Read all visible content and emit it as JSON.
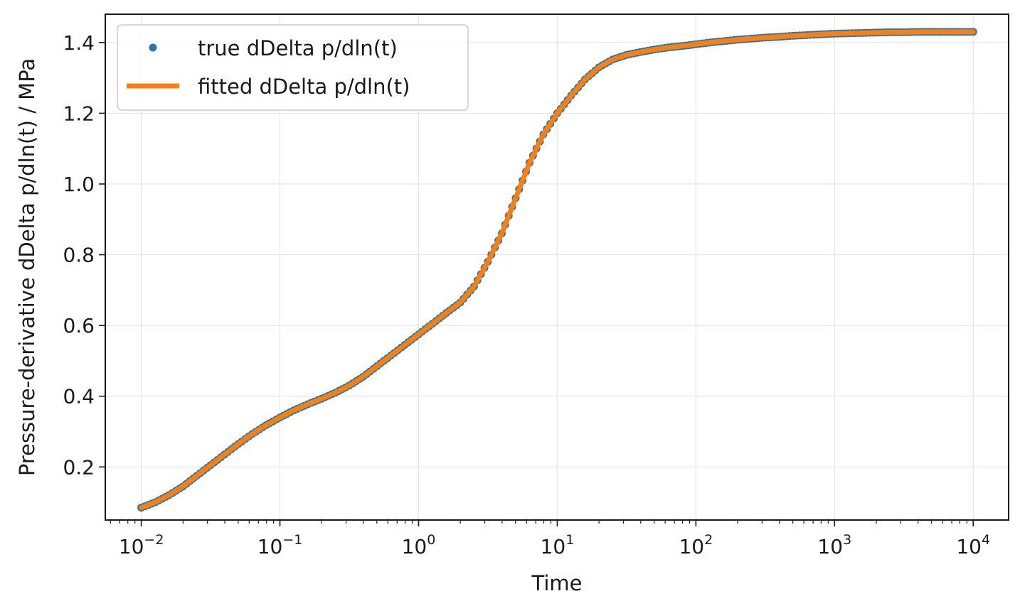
{
  "chart_data": {
    "type": "line",
    "title": "",
    "xlabel": "Time",
    "ylabel": "Pressure-derivative dDelta p/dln(t) / MPa",
    "xscale": "log",
    "xlim": [
      0.0055,
      18000
    ],
    "ylim": [
      0.05,
      1.48
    ],
    "grid": true,
    "legend_position": "top-left",
    "x_ticks": [
      {
        "base": "10",
        "exp": "−2",
        "value": 0.01
      },
      {
        "base": "10",
        "exp": "−1",
        "value": 0.1
      },
      {
        "base": "10",
        "exp": "0",
        "value": 1
      },
      {
        "base": "10",
        "exp": "1",
        "value": 10
      },
      {
        "base": "10",
        "exp": "2",
        "value": 100
      },
      {
        "base": "10",
        "exp": "3",
        "value": 1000
      },
      {
        "base": "10",
        "exp": "4",
        "value": 10000
      }
    ],
    "y_ticks": [
      "0.2",
      "0.4",
      "0.6",
      "0.8",
      "1.0",
      "1.2",
      "1.4"
    ],
    "series": [
      {
        "name": "true dDelta p/dln(t)",
        "style": "scatter",
        "color": "#1f77b4",
        "x": [
          0.01,
          0.0126,
          0.0158,
          0.02,
          0.0251,
          0.0316,
          0.0398,
          0.0501,
          0.0631,
          0.0794,
          0.1,
          0.126,
          0.158,
          0.2,
          0.251,
          0.316,
          0.398,
          0.501,
          0.631,
          0.794,
          1.0,
          1.26,
          1.58,
          2.0,
          2.51,
          3.16,
          3.98,
          5.01,
          6.31,
          7.94,
          10.0,
          12.6,
          15.8,
          20.0,
          25.1,
          31.6,
          39.8,
          50.1,
          63.1,
          79.4,
          100,
          126,
          158,
          200,
          251,
          316,
          398,
          501,
          631,
          794,
          1000,
          1260,
          1580,
          2000,
          2510,
          3160,
          3980,
          5010,
          6310,
          7940,
          10000
        ],
        "values": [
          0.085,
          0.1,
          0.12,
          0.145,
          0.175,
          0.205,
          0.235,
          0.265,
          0.293,
          0.318,
          0.34,
          0.36,
          0.377,
          0.393,
          0.41,
          0.43,
          0.455,
          0.485,
          0.515,
          0.545,
          0.575,
          0.605,
          0.635,
          0.665,
          0.71,
          0.78,
          0.86,
          0.96,
          1.06,
          1.14,
          1.2,
          1.25,
          1.295,
          1.33,
          1.352,
          1.365,
          1.373,
          1.38,
          1.386,
          1.39,
          1.395,
          1.4,
          1.404,
          1.408,
          1.411,
          1.414,
          1.416,
          1.419,
          1.421,
          1.423,
          1.425,
          1.426,
          1.427,
          1.428,
          1.429,
          1.429,
          1.43,
          1.43,
          1.43,
          1.43,
          1.43
        ]
      },
      {
        "name": "fitted dDelta p/dln(t)",
        "style": "line",
        "color": "#ff7f0e",
        "x": [
          0.01,
          0.0126,
          0.0158,
          0.02,
          0.0251,
          0.0316,
          0.0398,
          0.0501,
          0.0631,
          0.0794,
          0.1,
          0.126,
          0.158,
          0.2,
          0.251,
          0.316,
          0.398,
          0.501,
          0.631,
          0.794,
          1.0,
          1.26,
          1.58,
          2.0,
          2.51,
          3.16,
          3.98,
          5.01,
          6.31,
          7.94,
          10.0,
          12.6,
          15.8,
          20.0,
          25.1,
          31.6,
          39.8,
          50.1,
          63.1,
          79.4,
          100,
          126,
          158,
          200,
          251,
          316,
          398,
          501,
          631,
          794,
          1000,
          1260,
          1580,
          2000,
          2510,
          3160,
          3980,
          5010,
          6310,
          7940,
          10000
        ],
        "values": [
          0.085,
          0.1,
          0.12,
          0.145,
          0.175,
          0.205,
          0.235,
          0.265,
          0.293,
          0.318,
          0.34,
          0.36,
          0.377,
          0.393,
          0.41,
          0.43,
          0.455,
          0.485,
          0.515,
          0.545,
          0.575,
          0.605,
          0.635,
          0.665,
          0.71,
          0.78,
          0.86,
          0.96,
          1.06,
          1.14,
          1.2,
          1.25,
          1.295,
          1.33,
          1.352,
          1.365,
          1.373,
          1.38,
          1.386,
          1.39,
          1.395,
          1.4,
          1.404,
          1.408,
          1.411,
          1.414,
          1.416,
          1.419,
          1.421,
          1.423,
          1.425,
          1.426,
          1.427,
          1.428,
          1.429,
          1.429,
          1.43,
          1.43,
          1.43,
          1.43,
          1.43
        ]
      }
    ]
  }
}
